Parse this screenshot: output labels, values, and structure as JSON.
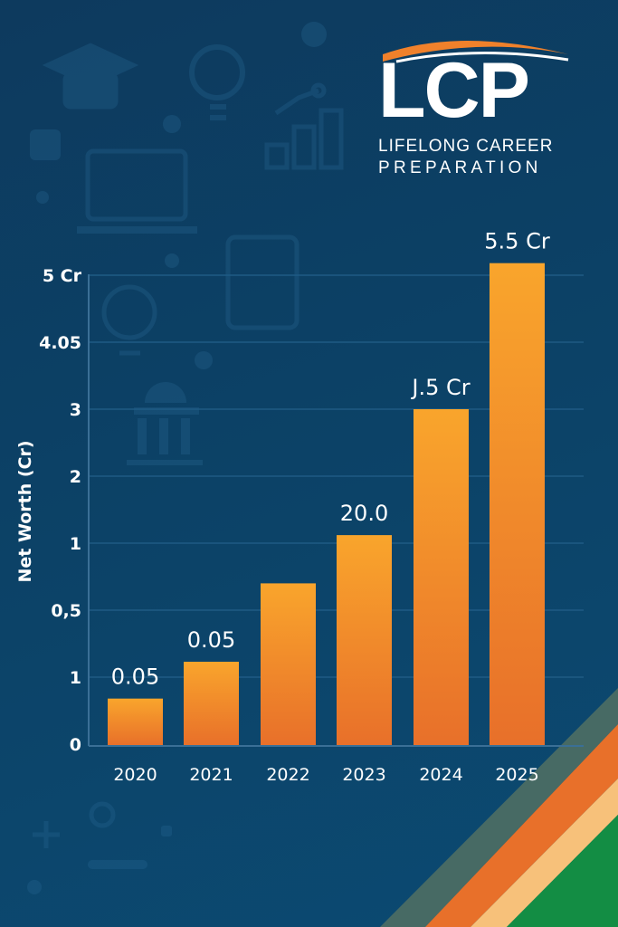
{
  "logo": {
    "mark": "LCP",
    "line1": "LIFELONG CAREER",
    "line2": "PREPARATION"
  },
  "colors": {
    "bar_top": "#f9a52c",
    "bar_bottom": "#e8702a",
    "accent_orange": "#f0812b",
    "accent_green": "#138d44"
  },
  "chart_data": {
    "type": "bar",
    "title": "",
    "xlabel": "",
    "ylabel": "Net Worth (Cr)",
    "categories": [
      "2020",
      "2021",
      "2022",
      "2023",
      "2024",
      "2025"
    ],
    "values": [
      0.68,
      1.23,
      2.4,
      3.12,
      5.0,
      7.18
    ],
    "value_note": "values expressed in tick-position units (ticks evenly spaced 0–7 as printed)",
    "data_labels": [
      "0.05",
      "0.05",
      "",
      "20.0",
      "J.5 Cr",
      "5.5 Cr"
    ],
    "y_ticks": [
      "0",
      "1",
      "0,5",
      "1",
      "2",
      "3",
      "4.05",
      "5 Cr"
    ],
    "ylim": [
      0,
      7.3
    ],
    "grid": true
  }
}
